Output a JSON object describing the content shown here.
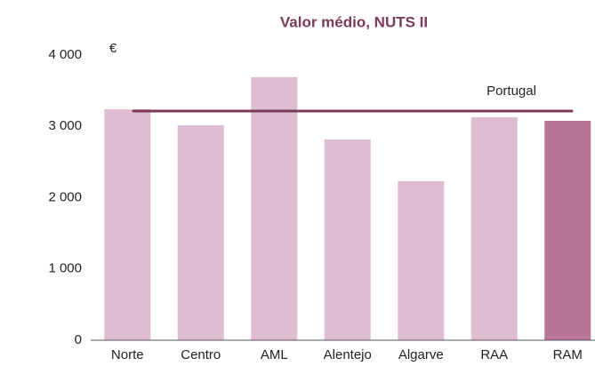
{
  "chart_data": {
    "type": "bar",
    "title": "Valor médio, NUTS II",
    "y_label": "€",
    "categories": [
      "Norte",
      "Centro",
      "AML",
      "Alentejo",
      "Algarve",
      "RAA",
      "RAM"
    ],
    "values": [
      3240,
      3016,
      3690,
      2816,
      2230,
      3128,
      3078
    ],
    "colors": [
      "#dfbdd0",
      "#dfbdd0",
      "#dfbdd0",
      "#dfbdd0",
      "#dfbdd0",
      "#dfbdd0",
      "#b87596"
    ],
    "reference": {
      "name": "Portugal",
      "value": 3215,
      "color": "#7b3a5a"
    },
    "ylim": [
      0,
      4000
    ],
    "yticks": [
      {
        "value": 0,
        "label": "0"
      },
      {
        "value": 1000,
        "label": "1 000"
      },
      {
        "value": 2000,
        "label": "2 000"
      },
      {
        "value": 3000,
        "label": "3 000"
      },
      {
        "value": 4000,
        "label": "4 000"
      }
    ],
    "grid": false
  }
}
